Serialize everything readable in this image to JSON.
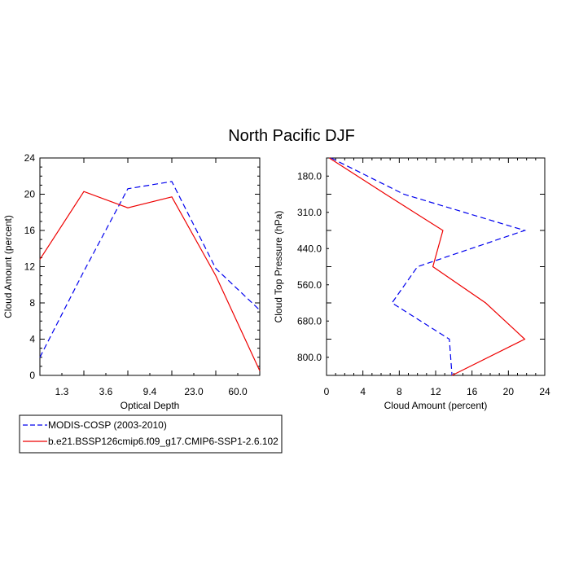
{
  "title": "North Pacific DJF",
  "chart_data": [
    {
      "type": "line",
      "xlabel": "Optical Depth",
      "ylabel": "Cloud Amount (percent)",
      "x_ticklabels": [
        "1.3",
        "3.6",
        "9.4",
        "23.0",
        "60.0"
      ],
      "ylim": [
        0,
        24
      ],
      "y_ticks": [
        0,
        4,
        8,
        12,
        16,
        20,
        24
      ],
      "series": [
        {
          "name": "MODIS-COSP (2003-2010)",
          "color": "#0000ee",
          "dash": "dashed",
          "values": [
            2.0,
            11.5,
            20.6,
            21.4,
            11.8,
            7.2
          ]
        },
        {
          "name": "b.e21.BSSP126cmip6.f09_g17.CMIP6-SSP1-2.6.102",
          "color": "#ee0000",
          "dash": "solid",
          "values": [
            12.8,
            20.3,
            18.5,
            19.7,
            11.0,
            0.5
          ]
        }
      ]
    },
    {
      "type": "line",
      "orientation": "horizontal",
      "xlabel": "Cloud Amount (percent)",
      "ylabel": "Cloud Top Pressure (hPa)",
      "y_ticklabels": [
        "180.0",
        "310.0",
        "440.0",
        "560.0",
        "680.0",
        "800.0"
      ],
      "xlim": [
        0,
        24
      ],
      "x_ticks": [
        0,
        4,
        8,
        12,
        16,
        20,
        24
      ],
      "series": [
        {
          "name": "MODIS-COSP (2003-2010)",
          "color": "#0000ee",
          "dash": "dashed",
          "values": [
            0.5,
            8.5,
            21.8,
            10.0,
            7.2,
            13.5,
            13.8
          ]
        },
        {
          "name": "b.e21.BSSP126cmip6.f09_g17.CMIP6-SSP1-2.6.102",
          "color": "#ee0000",
          "dash": "solid",
          "values": [
            0.3,
            6.5,
            12.8,
            11.7,
            17.5,
            21.8,
            13.8
          ]
        }
      ]
    }
  ]
}
